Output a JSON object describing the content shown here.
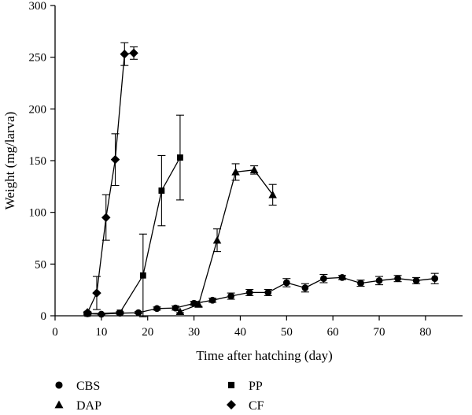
{
  "chart_data": {
    "type": "scatter",
    "title": "",
    "xlabel": "Time after hatching (day)",
    "ylabel": "Weight (mg/larva)",
    "xlim": [
      0,
      88
    ],
    "ylim": [
      0,
      300
    ],
    "xticks": [
      0,
      10,
      20,
      30,
      40,
      50,
      60,
      70,
      80
    ],
    "yticks": [
      0,
      50,
      100,
      150,
      200,
      250,
      300
    ],
    "grid": false,
    "legend_position": "bottom",
    "series": [
      {
        "name": "CBS",
        "marker": "circle",
        "x": [
          7,
          10,
          14,
          18,
          22,
          26,
          30,
          34,
          38,
          42,
          46,
          50,
          54,
          58,
          62,
          66,
          70,
          74,
          78,
          82
        ],
        "y": [
          2,
          1.5,
          2.5,
          3,
          7,
          7.5,
          12,
          15,
          19,
          22.5,
          22.5,
          32,
          27,
          36,
          37,
          31.5,
          34,
          36,
          34,
          36
        ],
        "err": [
          1,
          0.5,
          1,
          1,
          1.5,
          2,
          2,
          2,
          3,
          3,
          3,
          4,
          4,
          4,
          2,
          3,
          4,
          3,
          3,
          5
        ]
      },
      {
        "name": "PP",
        "marker": "square",
        "x": [
          7,
          14,
          19,
          23,
          27
        ],
        "y": [
          2,
          3,
          39,
          121,
          153
        ],
        "err": [
          1,
          1,
          40,
          34,
          41
        ]
      },
      {
        "name": "DAP",
        "marker": "triangle",
        "x": [
          27,
          31,
          35,
          39,
          43,
          47
        ],
        "y": [
          4,
          11,
          73,
          139,
          141,
          117
        ],
        "err": [
          1,
          2,
          11,
          8,
          4,
          10
        ]
      },
      {
        "name": "CF",
        "marker": "diamond",
        "x": [
          7,
          9,
          11,
          13,
          15,
          17
        ],
        "y": [
          3,
          22,
          95,
          151,
          253,
          254
        ],
        "err": [
          1,
          16,
          22,
          25,
          11,
          6
        ]
      }
    ],
    "legend": [
      {
        "label": "CBS",
        "marker": "circle"
      },
      {
        "label": "PP",
        "marker": "square"
      },
      {
        "label": "DAP",
        "marker": "triangle"
      },
      {
        "label": "CF",
        "marker": "diamond"
      }
    ],
    "colors": {
      "line": "#000000",
      "marker": "#000000"
    }
  }
}
